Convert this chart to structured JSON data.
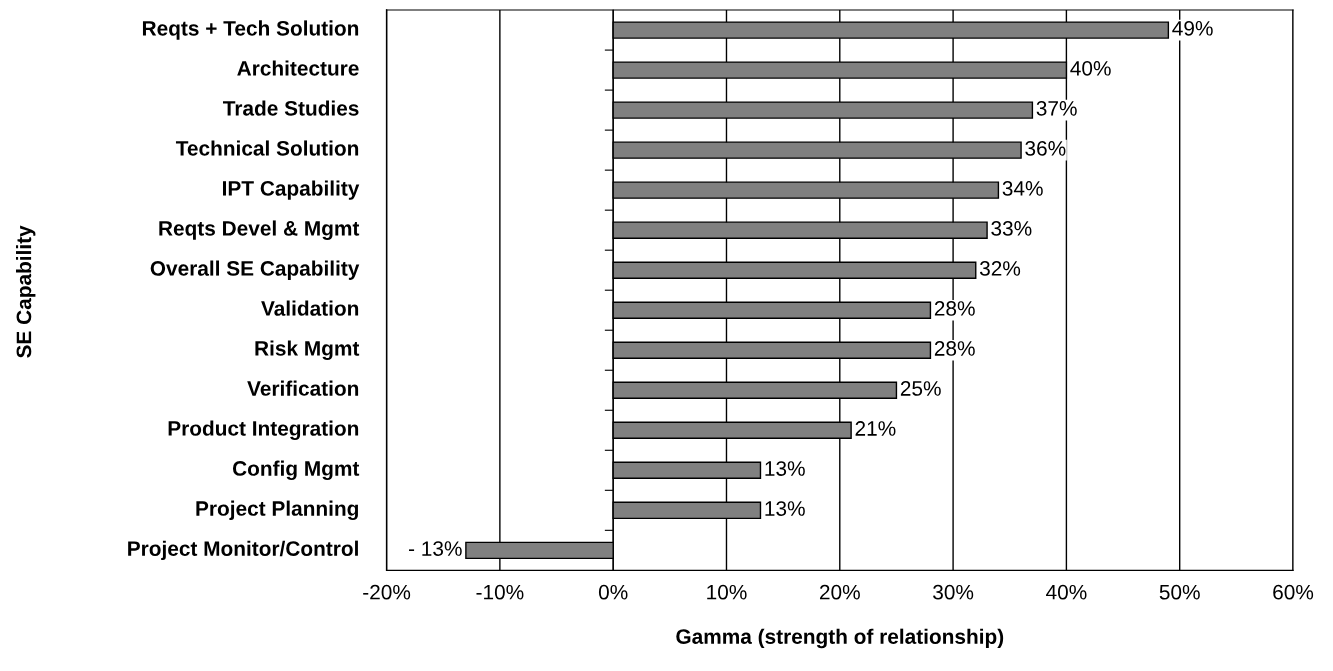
{
  "chart_data": {
    "type": "bar",
    "orientation": "horizontal",
    "categories": [
      "Reqts + Tech Solution",
      "Architecture",
      "Trade Studies",
      "Technical Solution",
      "IPT Capability",
      "Reqts Devel & Mgmt",
      "Overall SE Capability",
      "Validation",
      "Risk Mgmt",
      "Verification",
      "Product Integration",
      "Config Mgmt",
      "Project Planning",
      "Project Monitor/Control"
    ],
    "values": [
      49,
      40,
      37,
      36,
      34,
      33,
      32,
      28,
      28,
      25,
      21,
      13,
      13,
      -13
    ],
    "value_labels": [
      "49%",
      "40%",
      "37%",
      "36%",
      "34%",
      "33%",
      "32%",
      "28%",
      "28%",
      "25%",
      "21%",
      "13%",
      "13%",
      "- 13%"
    ],
    "color": "#808080",
    "xlabel": "Gamma (strength of relationship)",
    "ylabel": "SE Capability",
    "xlim": [
      -20,
      60
    ],
    "xticks": [
      {
        "value": -20,
        "label": "-20%"
      },
      {
        "value": -10,
        "label": "-10%"
      },
      {
        "value": 0,
        "label": "0%"
      },
      {
        "value": 10,
        "label": "10%"
      },
      {
        "value": 20,
        "label": "20%"
      },
      {
        "value": 30,
        "label": "30%"
      },
      {
        "value": 40,
        "label": "40%"
      },
      {
        "value": 50,
        "label": "50%"
      },
      {
        "value": 60,
        "label": "60%"
      }
    ],
    "grid": "x",
    "legend": false
  }
}
